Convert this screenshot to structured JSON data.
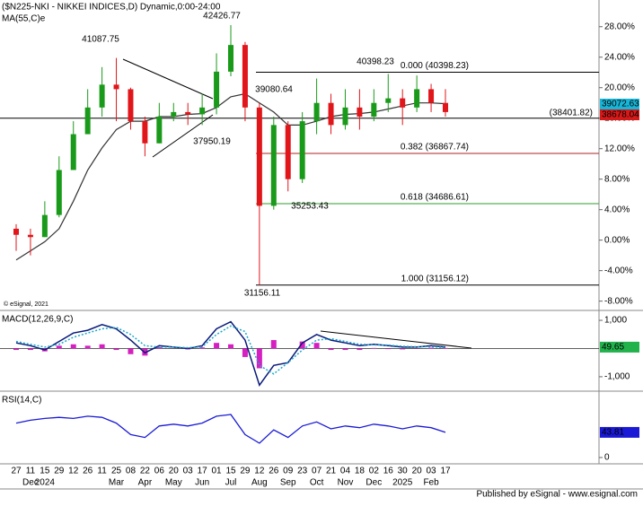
{
  "chart_data": [
    {
      "type": "candlestick",
      "title": "($N225-NKI - NIKKEI INDICES,D) Dynamic,0:00-24:00",
      "copyright": "© eSignal, 2021",
      "categories": [
        "27",
        "11",
        "15",
        "29",
        "12",
        "26",
        "11",
        "25",
        "08",
        "22",
        "06",
        "20",
        "03",
        "17",
        "01",
        "15",
        "29",
        "12",
        "26",
        "09",
        "23",
        "07",
        "21",
        "04",
        "18",
        "02",
        "16",
        "30",
        "20",
        "03",
        "17"
      ],
      "months": [
        null,
        "Dec",
        "2024",
        null,
        null,
        null,
        null,
        "Mar",
        null,
        "Apr",
        null,
        "May",
        null,
        "Jun",
        null,
        "Jul",
        null,
        "Aug",
        null,
        "Sep",
        null,
        "Oct",
        null,
        "Nov",
        null,
        "Dec",
        null,
        "2025",
        null,
        "Feb",
        null
      ],
      "open": [
        1.5,
        0.7,
        0.4,
        3.3,
        9.2,
        13.9,
        17.4,
        20.4,
        19.8,
        15.6,
        12.7,
        16.2,
        16.8,
        16.5,
        17.4,
        22.1,
        25.6,
        17.4,
        4.5,
        15.1,
        8.0,
        15.6,
        18.0,
        15.1,
        17.4,
        16.2,
        18.0,
        18.6,
        17.4,
        19.8,
        18.0
      ],
      "high": [
        2.1,
        1.5,
        5.1,
        11.0,
        15.6,
        19.8,
        22.7,
        23.9,
        20.0,
        16.2,
        18.0,
        18.0,
        18.0,
        19.2,
        24.5,
        28.2,
        26.0,
        18.0,
        16.2,
        15.6,
        16.8,
        21.2,
        19.2,
        19.8,
        19.8,
        19.8,
        21.8,
        19.8,
        21.6,
        20.5,
        19.8
      ],
      "low": [
        -1.4,
        -2.0,
        0.4,
        3.0,
        9.2,
        13.9,
        16.2,
        15.6,
        14.5,
        11.0,
        12.7,
        15.6,
        15.1,
        15.1,
        16.5,
        21.5,
        15.6,
        -5.9,
        4.0,
        6.4,
        7.5,
        13.9,
        13.9,
        14.5,
        14.5,
        15.6,
        16.8,
        15.1,
        16.8,
        16.8,
        16.2
      ],
      "close": [
        0.7,
        0.4,
        3.3,
        9.2,
        13.9,
        17.4,
        20.4,
        19.8,
        15.6,
        12.7,
        16.2,
        16.8,
        16.5,
        17.4,
        22.1,
        25.6,
        17.4,
        4.5,
        15.1,
        8.0,
        15.6,
        18.0,
        15.1,
        17.4,
        16.2,
        18.0,
        18.6,
        17.4,
        19.8,
        18.0,
        16.8
      ],
      "up_color": "#1a9a1a",
      "down_color": "#e0161b",
      "ma": {
        "name": "MA(55,C)e",
        "color": "#333333",
        "values": [
          -2.6,
          -1.4,
          -0.2,
          1.5,
          5.1,
          9.2,
          12.1,
          14.5,
          15.6,
          15.6,
          16.2,
          16.2,
          16.5,
          16.6,
          17.4,
          18.8,
          19.2,
          18.0,
          16.8,
          15.1,
          15.1,
          15.6,
          16.2,
          16.5,
          16.6,
          16.8,
          17.2,
          17.6,
          18.0,
          18.0,
          17.9
        ]
      },
      "ylim": [
        -9.1,
        31.5
      ],
      "yticks": [
        {
          "value": 28,
          "label": "28.00%"
        },
        {
          "value": 24,
          "label": "24.00%"
        },
        {
          "value": 20,
          "label": "20.00%"
        },
        {
          "value": 16,
          "label": "16.00%"
        },
        {
          "value": 12,
          "label": "12.00%"
        },
        {
          "value": 8,
          "label": "8.00%"
        },
        {
          "value": 4,
          "label": "4.00%"
        },
        {
          "value": 0,
          "label": "0.00%"
        },
        {
          "value": -4,
          "label": "-4.00%"
        },
        {
          "value": -8,
          "label": "-8.00%"
        }
      ],
      "hline": {
        "value": 16.0,
        "label": "(38401.82)",
        "color": "#000000"
      },
      "fib_levels": [
        {
          "value": 22.03,
          "label": "0.000 (40398.23)",
          "color": "#000000"
        },
        {
          "value": 11.37,
          "label": "0.382 (36867.74)",
          "color": "#b22222"
        },
        {
          "value": 4.78,
          "label": "0.618 (34686.61)",
          "color": "#2e9e2e"
        },
        {
          "value": -5.89,
          "label": "1.000 (31156.12)",
          "color": "#000000"
        }
      ],
      "annotations": [
        "41087.75",
        "42426.77",
        "40398.23",
        "39080.64",
        "37950.19",
        "35253.43",
        "31156.11"
      ],
      "ma_last_label": "39072.63",
      "close_last_label": "38678.04"
    },
    {
      "type": "macd",
      "title": "MACD(12,26,9,C)",
      "series": [
        {
          "name": "MACD",
          "kind": "line",
          "color": "#0a1a7a",
          "values": [
            200,
            100,
            -50,
            250,
            550,
            650,
            850,
            700,
            300,
            -150,
            100,
            50,
            0,
            100,
            700,
            950,
            300,
            -1300,
            -600,
            -500,
            200,
            500,
            300,
            200,
            100,
            150,
            100,
            50,
            50,
            100,
            49.65
          ]
        },
        {
          "name": "Signal",
          "kind": "line",
          "line_style": "dotted",
          "color": "#19a7c9",
          "values": [
            250,
            150,
            50,
            150,
            400,
            550,
            700,
            750,
            500,
            100,
            50,
            50,
            30,
            60,
            500,
            800,
            600,
            -600,
            -900,
            -500,
            -50,
            300,
            350,
            250,
            150,
            130,
            120,
            80,
            60,
            70,
            30
          ]
        },
        {
          "name": "Histogram",
          "kind": "bar",
          "color": "#d61fc1",
          "values": [
            -50,
            -50,
            -100,
            100,
            150,
            100,
            150,
            -50,
            -200,
            -250,
            50,
            0,
            -30,
            40,
            200,
            150,
            -300,
            -700,
            300,
            0,
            250,
            200,
            -50,
            -50,
            -50,
            20,
            -20,
            -30,
            -10,
            30,
            20
          ]
        }
      ],
      "ylim": [
        -1480,
        1320
      ],
      "yticks": [
        {
          "value": 1000,
          "label": "1,000"
        },
        {
          "value": -1000,
          "label": "-1,000"
        }
      ],
      "last_value_label": "49.65",
      "last_label_color": "#22b24c"
    },
    {
      "type": "rsi",
      "title": "RSI(14,C)",
      "series": [
        {
          "name": "RSI",
          "kind": "line",
          "color": "#1a1ad6",
          "values": [
            60,
            65,
            68,
            70,
            68,
            72,
            70,
            60,
            40,
            35,
            55,
            58,
            55,
            60,
            72,
            75,
            40,
            25,
            48,
            35,
            55,
            62,
            50,
            55,
            52,
            58,
            55,
            50,
            55,
            52,
            43.81
          ]
        }
      ],
      "ylim": [
        -11,
        114
      ],
      "yticks": [
        0
      ],
      "last_value_label": "43.81",
      "last_label_color": "#1a1ad6"
    }
  ],
  "footer": "Published by eSignal - www.esignal.com"
}
